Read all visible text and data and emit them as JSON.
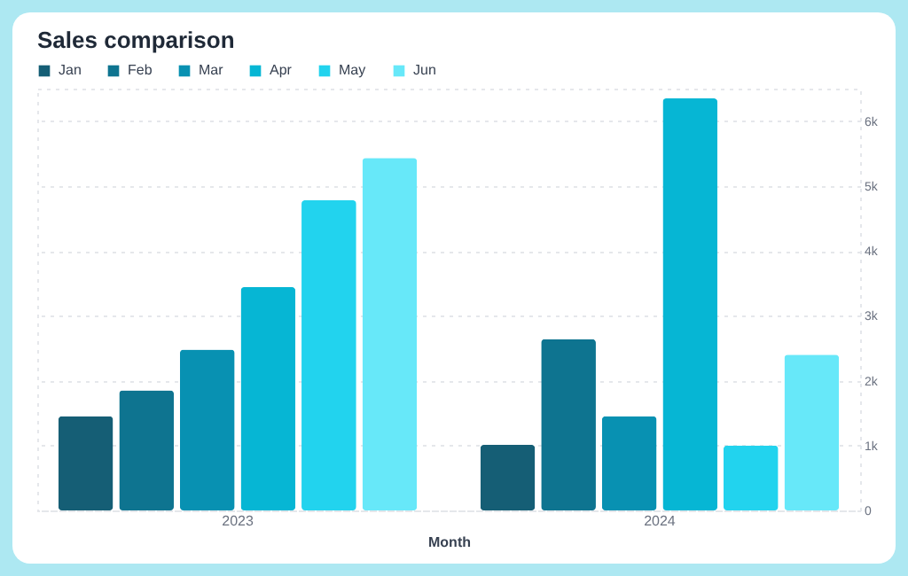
{
  "chart_data": {
    "type": "bar",
    "title": "Sales comparison",
    "xlabel": "Month",
    "categories": [
      "2023",
      "2024"
    ],
    "series": [
      {
        "name": "Jan",
        "color": "#155e75",
        "values": [
          1450,
          1010
        ]
      },
      {
        "name": "Feb",
        "color": "#0e7490",
        "values": [
          1850,
          2640
        ]
      },
      {
        "name": "Mar",
        "color": "#0891b2",
        "values": [
          2480,
          1450
        ]
      },
      {
        "name": "Apr",
        "color": "#06b6d4",
        "values": [
          3440,
          6350
        ]
      },
      {
        "name": "May",
        "color": "#22d3ee",
        "values": [
          4780,
          1000
        ]
      },
      {
        "name": "Jun",
        "color": "#67e8f9",
        "values": [
          5430,
          2400
        ]
      }
    ],
    "ylim": [
      0,
      6500
    ],
    "yticks": [
      {
        "value": 0,
        "label": "0"
      },
      {
        "value": 1000,
        "label": "1k"
      },
      {
        "value": 2000,
        "label": "2k"
      },
      {
        "value": 3000,
        "label": "3k"
      },
      {
        "value": 4000,
        "label": "4k"
      },
      {
        "value": 5000,
        "label": "5k"
      },
      {
        "value": 6000,
        "label": "6k"
      }
    ],
    "grid": "y",
    "legend": "top left"
  }
}
